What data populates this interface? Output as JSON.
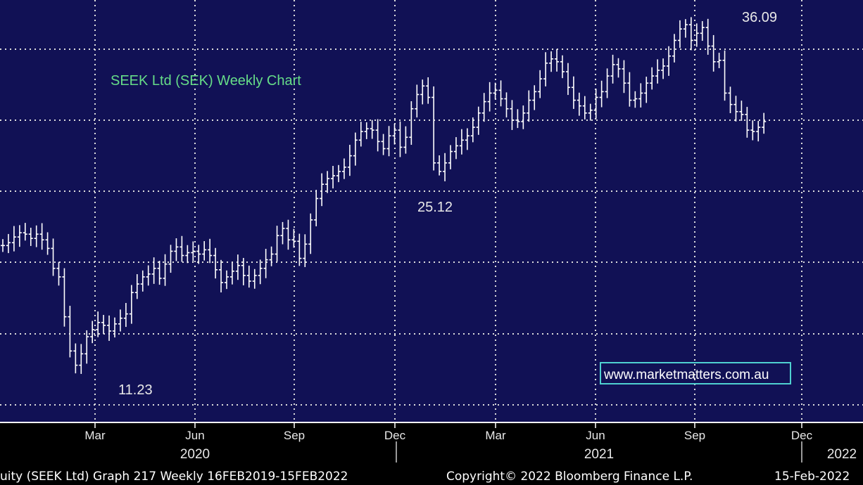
{
  "chart_data": {
    "type": "bar",
    "subtype": "ohlc-weekly",
    "title": "SEEK Ltd (SEK) Weekly Chart",
    "x_ticks": [
      "Mar",
      "Jun",
      "Sep",
      "Dec",
      "Mar",
      "Jun",
      "Sep",
      "Dec"
    ],
    "x_years": [
      "2020",
      "2021",
      "2022"
    ],
    "ylim": [
      9,
      38
    ],
    "grid": true,
    "annotations": [
      {
        "label": "36.09",
        "value": 36.09
      },
      {
        "label": "25.12",
        "value": 25.12
      },
      {
        "label": "11.23",
        "value": 11.23
      }
    ],
    "watermark": "www.marketmatters.com.au",
    "footer_left": "uity (SEEK Ltd) Graph 217  Weekly 16FEB2019-15FEB2022",
    "footer_center": "Copyright© 2022 Bloomberg Finance L.P.",
    "footer_right": "15-Feb-2022",
    "colors": {
      "plot_bg": "#111155",
      "grid": "#dddddd",
      "bars": "#ffffff",
      "title": "#66dd88",
      "watermark_border": "#4fd0d0"
    },
    "weekly_closes": [
      20.2,
      20.4,
      20.8,
      21.1,
      21.0,
      20.7,
      21.0,
      20.6,
      20.0,
      18.6,
      18.0,
      15.2,
      12.8,
      11.8,
      12.6,
      13.8,
      14.3,
      14.8,
      14.6,
      14.2,
      14.7,
      15.1,
      15.4,
      16.9,
      17.5,
      18.0,
      18.2,
      18.6,
      17.9,
      18.9,
      19.8,
      20.1,
      19.5,
      19.7,
      19.8,
      19.6,
      19.9,
      19.5,
      18.5,
      17.6,
      18.0,
      18.4,
      18.8,
      18.1,
      17.7,
      18.1,
      18.6,
      19.2,
      19.6,
      20.9,
      21.4,
      20.6,
      20.5,
      19.3,
      20.3,
      22.0,
      23.5,
      24.5,
      24.9,
      25.1,
      25.4,
      25.7,
      26.5,
      27.6,
      28.2,
      28.4,
      28.3,
      27.5,
      27.0,
      27.9,
      28.3,
      27.1,
      27.8,
      29.8,
      30.8,
      31.4,
      30.6,
      26.0,
      25.4,
      26.0,
      26.8,
      27.2,
      27.6,
      27.9,
      28.5,
      29.5,
      30.3,
      30.9,
      31.1,
      30.5,
      29.8,
      29.0,
      28.9,
      29.5,
      30.4,
      31.0,
      31.9,
      33.0,
      33.3,
      33.1,
      32.4,
      31.3,
      30.4,
      30.0,
      29.5,
      29.7,
      30.6,
      31.0,
      32.1,
      32.9,
      32.6,
      31.6,
      30.4,
      30.5,
      30.9,
      31.6,
      32.1,
      32.5,
      32.8,
      33.5,
      34.6,
      35.4,
      35.7,
      34.6,
      35.1,
      35.5,
      34.2,
      33.1,
      33.2,
      30.9,
      30.1,
      29.6,
      29.4,
      28.3,
      28.2,
      28.5,
      28.9
    ]
  }
}
